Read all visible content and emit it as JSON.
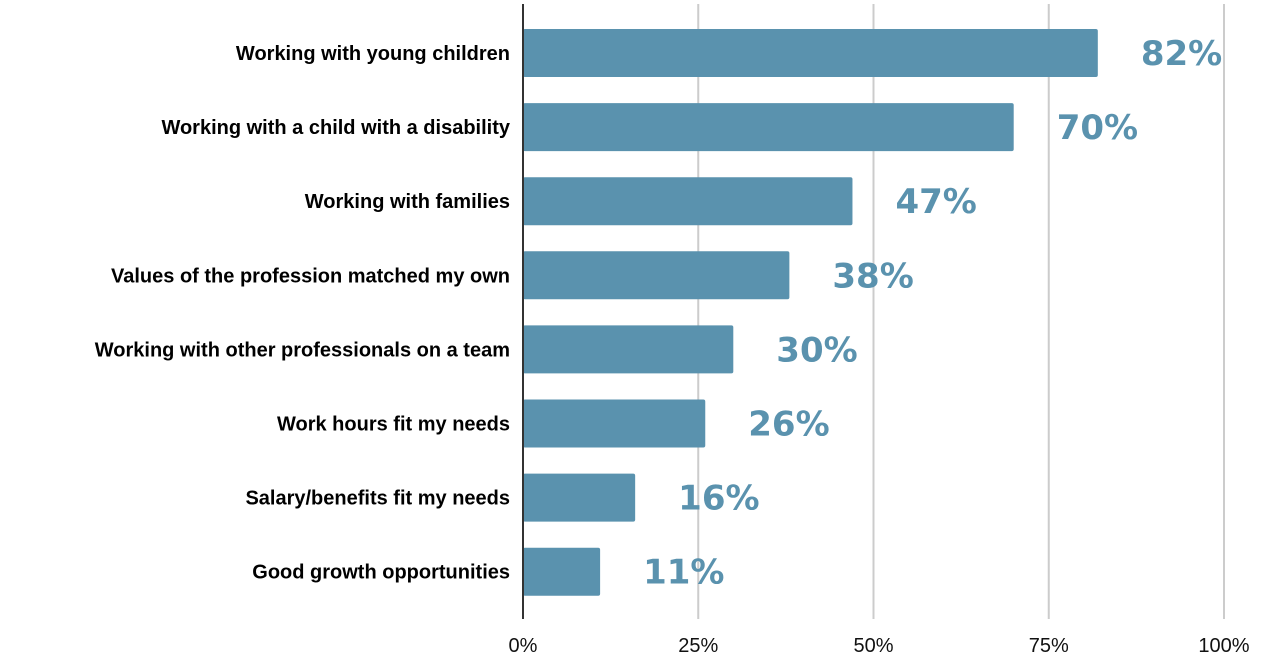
{
  "chart_data": {
    "type": "bar",
    "orientation": "horizontal",
    "title": "",
    "xlabel": "",
    "ylabel": "",
    "categories": [
      "Working with young children",
      "Working with a child with a disability",
      "Working with families",
      "Values of the profession matched my own",
      "Working with other professionals on a team",
      "Work hours fit my needs",
      "Salary/benefits fit my needs",
      "Good growth opportunities"
    ],
    "values": [
      82,
      70,
      47,
      38,
      30,
      26,
      16,
      11
    ],
    "data_labels": [
      "82%",
      "70%",
      "47%",
      "38%",
      "30%",
      "26%",
      "16%",
      "11%"
    ],
    "xlim": [
      0,
      100
    ],
    "x_ticks": [
      0,
      25,
      50,
      75,
      100
    ],
    "x_tick_labels": [
      "0%",
      "25%",
      "50%",
      "75%",
      "100%"
    ],
    "grid": "vertical",
    "legend": "none",
    "colors": {
      "bar": "#5a92ae",
      "data_label": "#5a92ae",
      "grid": "#cccccc",
      "axis": "#333333"
    }
  }
}
